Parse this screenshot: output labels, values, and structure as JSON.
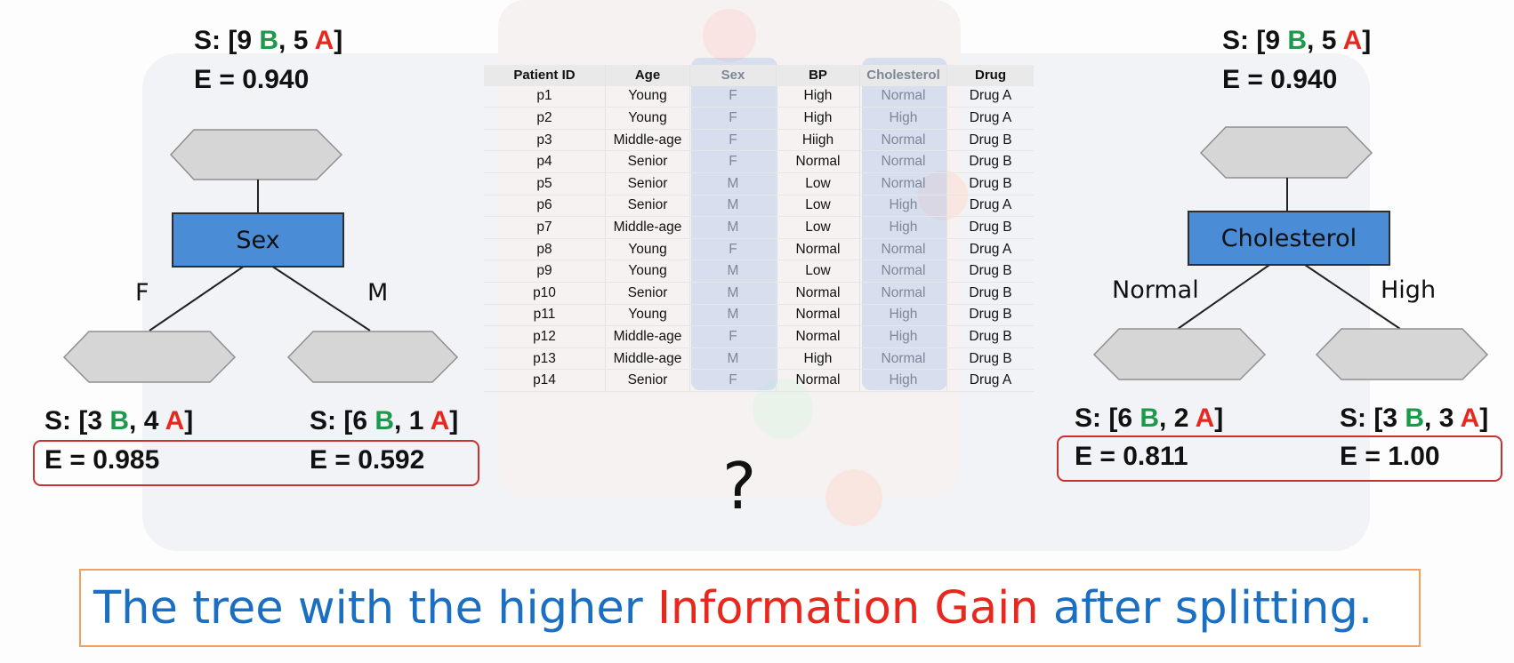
{
  "left_tree": {
    "root_label": "S: [9 ",
    "root_b": "B",
    "root_sep": ", 5 ",
    "root_a": "A",
    "root_close": "]",
    "root_entropy": "E = 0.940",
    "node_label": "Sex",
    "branch_left": "F",
    "branch_right": "M",
    "leaf_left": {
      "open": "S: [3 ",
      "b": "B",
      "sep": ", 4 ",
      "a": "A",
      "close": "]",
      "entropy": "E = 0.985"
    },
    "leaf_right": {
      "open": "S: [6 ",
      "b": "B",
      "sep": ", 1 ",
      "a": "A",
      "close": "]",
      "entropy": "E = 0.592"
    }
  },
  "right_tree": {
    "root_label": "S: [9 ",
    "root_b": "B",
    "root_sep": ", 5 ",
    "root_a": "A",
    "root_close": "]",
    "root_entropy": "E = 0.940",
    "node_label": "Cholesterol",
    "branch_left": "Normal",
    "branch_right": "High",
    "leaf_left": {
      "open": "S: [6 ",
      "b": "B",
      "sep": ", 2 ",
      "a": "A",
      "close": "]",
      "entropy": "E = 0.811"
    },
    "leaf_right": {
      "open": "S: [3 ",
      "b": "B",
      "sep": ", 3 ",
      "a": "A",
      "close": "]",
      "entropy": "E = 1.00"
    }
  },
  "table": {
    "headers": [
      "Patient ID",
      "Age",
      "Sex",
      "BP",
      "Cholesterol",
      "Drug"
    ],
    "rows": [
      [
        "p1",
        "Young",
        "F",
        "High",
        "Normal",
        "Drug A"
      ],
      [
        "p2",
        "Young",
        "F",
        "High",
        "High",
        "Drug A"
      ],
      [
        "p3",
        "Middle-age",
        "F",
        "Hiigh",
        "Normal",
        "Drug B"
      ],
      [
        "p4",
        "Senior",
        "F",
        "Normal",
        "Normal",
        "Drug B"
      ],
      [
        "p5",
        "Senior",
        "M",
        "Low",
        "Normal",
        "Drug B"
      ],
      [
        "p6",
        "Senior",
        "M",
        "Low",
        "High",
        "Drug A"
      ],
      [
        "p7",
        "Middle-age",
        "M",
        "Low",
        "High",
        "Drug B"
      ],
      [
        "p8",
        "Young",
        "F",
        "Normal",
        "Normal",
        "Drug A"
      ],
      [
        "p9",
        "Young",
        "M",
        "Low",
        "Normal",
        "Drug B"
      ],
      [
        "p10",
        "Senior",
        "M",
        "Normal",
        "Normal",
        "Drug B"
      ],
      [
        "p11",
        "Young",
        "M",
        "Normal",
        "High",
        "Drug B"
      ],
      [
        "p12",
        "Middle-age",
        "F",
        "Normal",
        "High",
        "Drug B"
      ],
      [
        "p13",
        "Middle-age",
        "M",
        "High",
        "Normal",
        "Drug B"
      ],
      [
        "p14",
        "Senior",
        "F",
        "Normal",
        "High",
        "Drug A"
      ]
    ]
  },
  "question_mark": "?",
  "caption": {
    "part1": "The tree with the higher ",
    "part2": "Information Gain",
    "part3": " after splitting."
  },
  "colors": {
    "class_b": "#1a9a4a",
    "class_a": "#e8281e",
    "node_fill": "#4a8cd6",
    "hexagon_fill": "#d6d6d6",
    "entropy_box_border": "#c6322f",
    "caption_border": "#f0a060",
    "caption_blue": "#1a6fc2",
    "caption_red": "#e8281e"
  }
}
